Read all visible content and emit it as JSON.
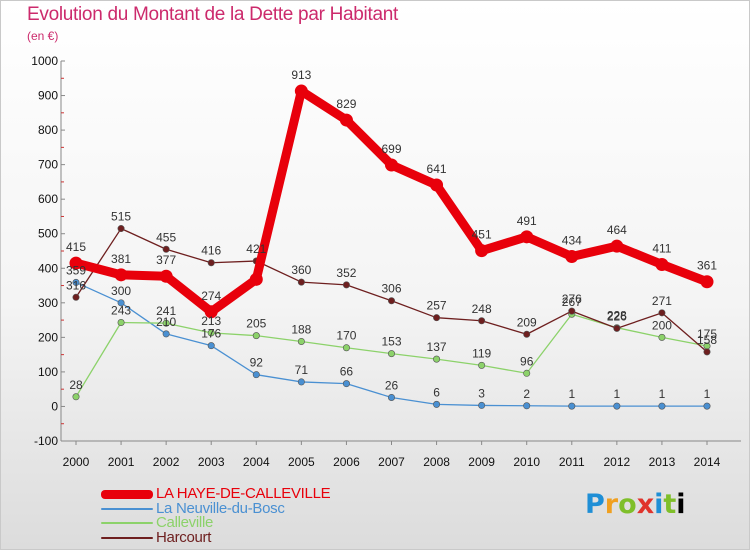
{
  "header": {
    "title": "Evolution du Montant de la Dette par Habitant",
    "subtitle": "(en €)"
  },
  "logo": {
    "letters": [
      "P",
      "r",
      "o",
      "x",
      "i",
      "t",
      "i"
    ]
  },
  "chart_data": {
    "type": "line",
    "categories": [
      "2000",
      "2001",
      "2002",
      "2003",
      "2004",
      "2005",
      "2006",
      "2007",
      "2008",
      "2009",
      "2010",
      "2011",
      "2012",
      "2013",
      "2014"
    ],
    "ylim": [
      -100,
      1000
    ],
    "yticks": [
      "-100",
      "0",
      "100",
      "200",
      "300",
      "400",
      "500",
      "600",
      "700",
      "800",
      "900",
      "1000"
    ],
    "legend_position": "bottom-left",
    "series": [
      {
        "name": "LA HAYE-DE-CALLEVILLE",
        "color": "#e8000b",
        "bold": true,
        "values": [
          415,
          381,
          377,
          274,
          368,
          913,
          829,
          699,
          641,
          451,
          491,
          434,
          464,
          411,
          361
        ],
        "labels": [
          "415",
          "381",
          "377",
          "274",
          "",
          "913",
          "829",
          "699",
          "641",
          "451",
          "491",
          "434",
          "464",
          "411",
          "361"
        ]
      },
      {
        "name": "La Neuville-du-Bosc",
        "color": "#4a90d2",
        "values": [
          359,
          300,
          210,
          176,
          92,
          71,
          66,
          26,
          6,
          3,
          2,
          1,
          1,
          1,
          1
        ],
        "labels": [
          "359",
          "300",
          "210",
          "176",
          "92",
          "71",
          "66",
          "26",
          "6",
          "3",
          "2",
          "1",
          "1",
          "1",
          "1"
        ]
      },
      {
        "name": "Calleville",
        "color": "#8cd26a",
        "values": [
          28,
          243,
          241,
          213,
          205,
          188,
          170,
          153,
          137,
          119,
          96,
          267,
          228,
          200,
          175
        ],
        "labels": [
          "28",
          "243",
          "241",
          "213",
          "205",
          "188",
          "170",
          "153",
          "137",
          "119",
          "96",
          "267",
          "228",
          "200",
          "175"
        ]
      },
      {
        "name": "Harcourt",
        "color": "#6e1f1f",
        "values": [
          316,
          515,
          455,
          416,
          421,
          360,
          352,
          306,
          257,
          248,
          209,
          276,
          226,
          271,
          158
        ],
        "labels": [
          "316",
          "515",
          "455",
          "416",
          "421",
          "360",
          "352",
          "306",
          "257",
          "248",
          "209",
          "276",
          "226",
          "271",
          "158"
        ]
      }
    ]
  }
}
